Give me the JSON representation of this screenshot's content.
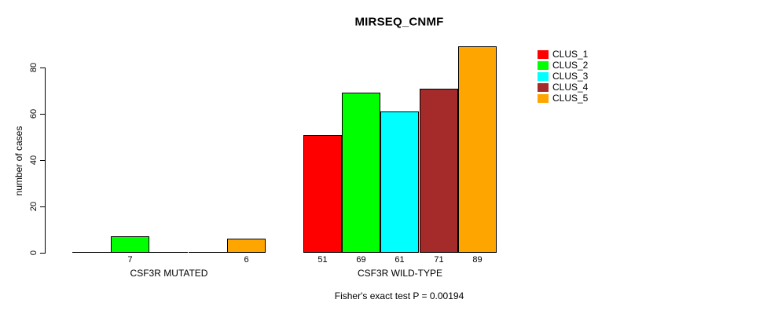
{
  "chart_data": {
    "type": "bar",
    "title": "MIRSEQ_CNMF",
    "ylabel": "number of cases",
    "xlabel": "",
    "annotation": "Fisher's exact test P = 0.00194",
    "ylim": [
      0,
      89
    ],
    "yticks": [
      0,
      20,
      40,
      60,
      80
    ],
    "grid": false,
    "legend_position": "right",
    "categories": [
      "CSF3R MUTATED",
      "CSF3R WILD-TYPE"
    ],
    "series": [
      {
        "name": "CLUS_1",
        "color": "#FF0000",
        "values": [
          0,
          51
        ]
      },
      {
        "name": "CLUS_2",
        "color": "#00FF00",
        "values": [
          7,
          69
        ]
      },
      {
        "name": "CLUS_3",
        "color": "#00FFFF",
        "values": [
          0,
          61
        ]
      },
      {
        "name": "CLUS_4",
        "color": "#A52A2A",
        "values": [
          0,
          71
        ]
      },
      {
        "name": "CLUS_5",
        "color": "#FFA500",
        "values": [
          6,
          89
        ]
      }
    ],
    "bar_value_labels_shown_when_positive": true
  }
}
